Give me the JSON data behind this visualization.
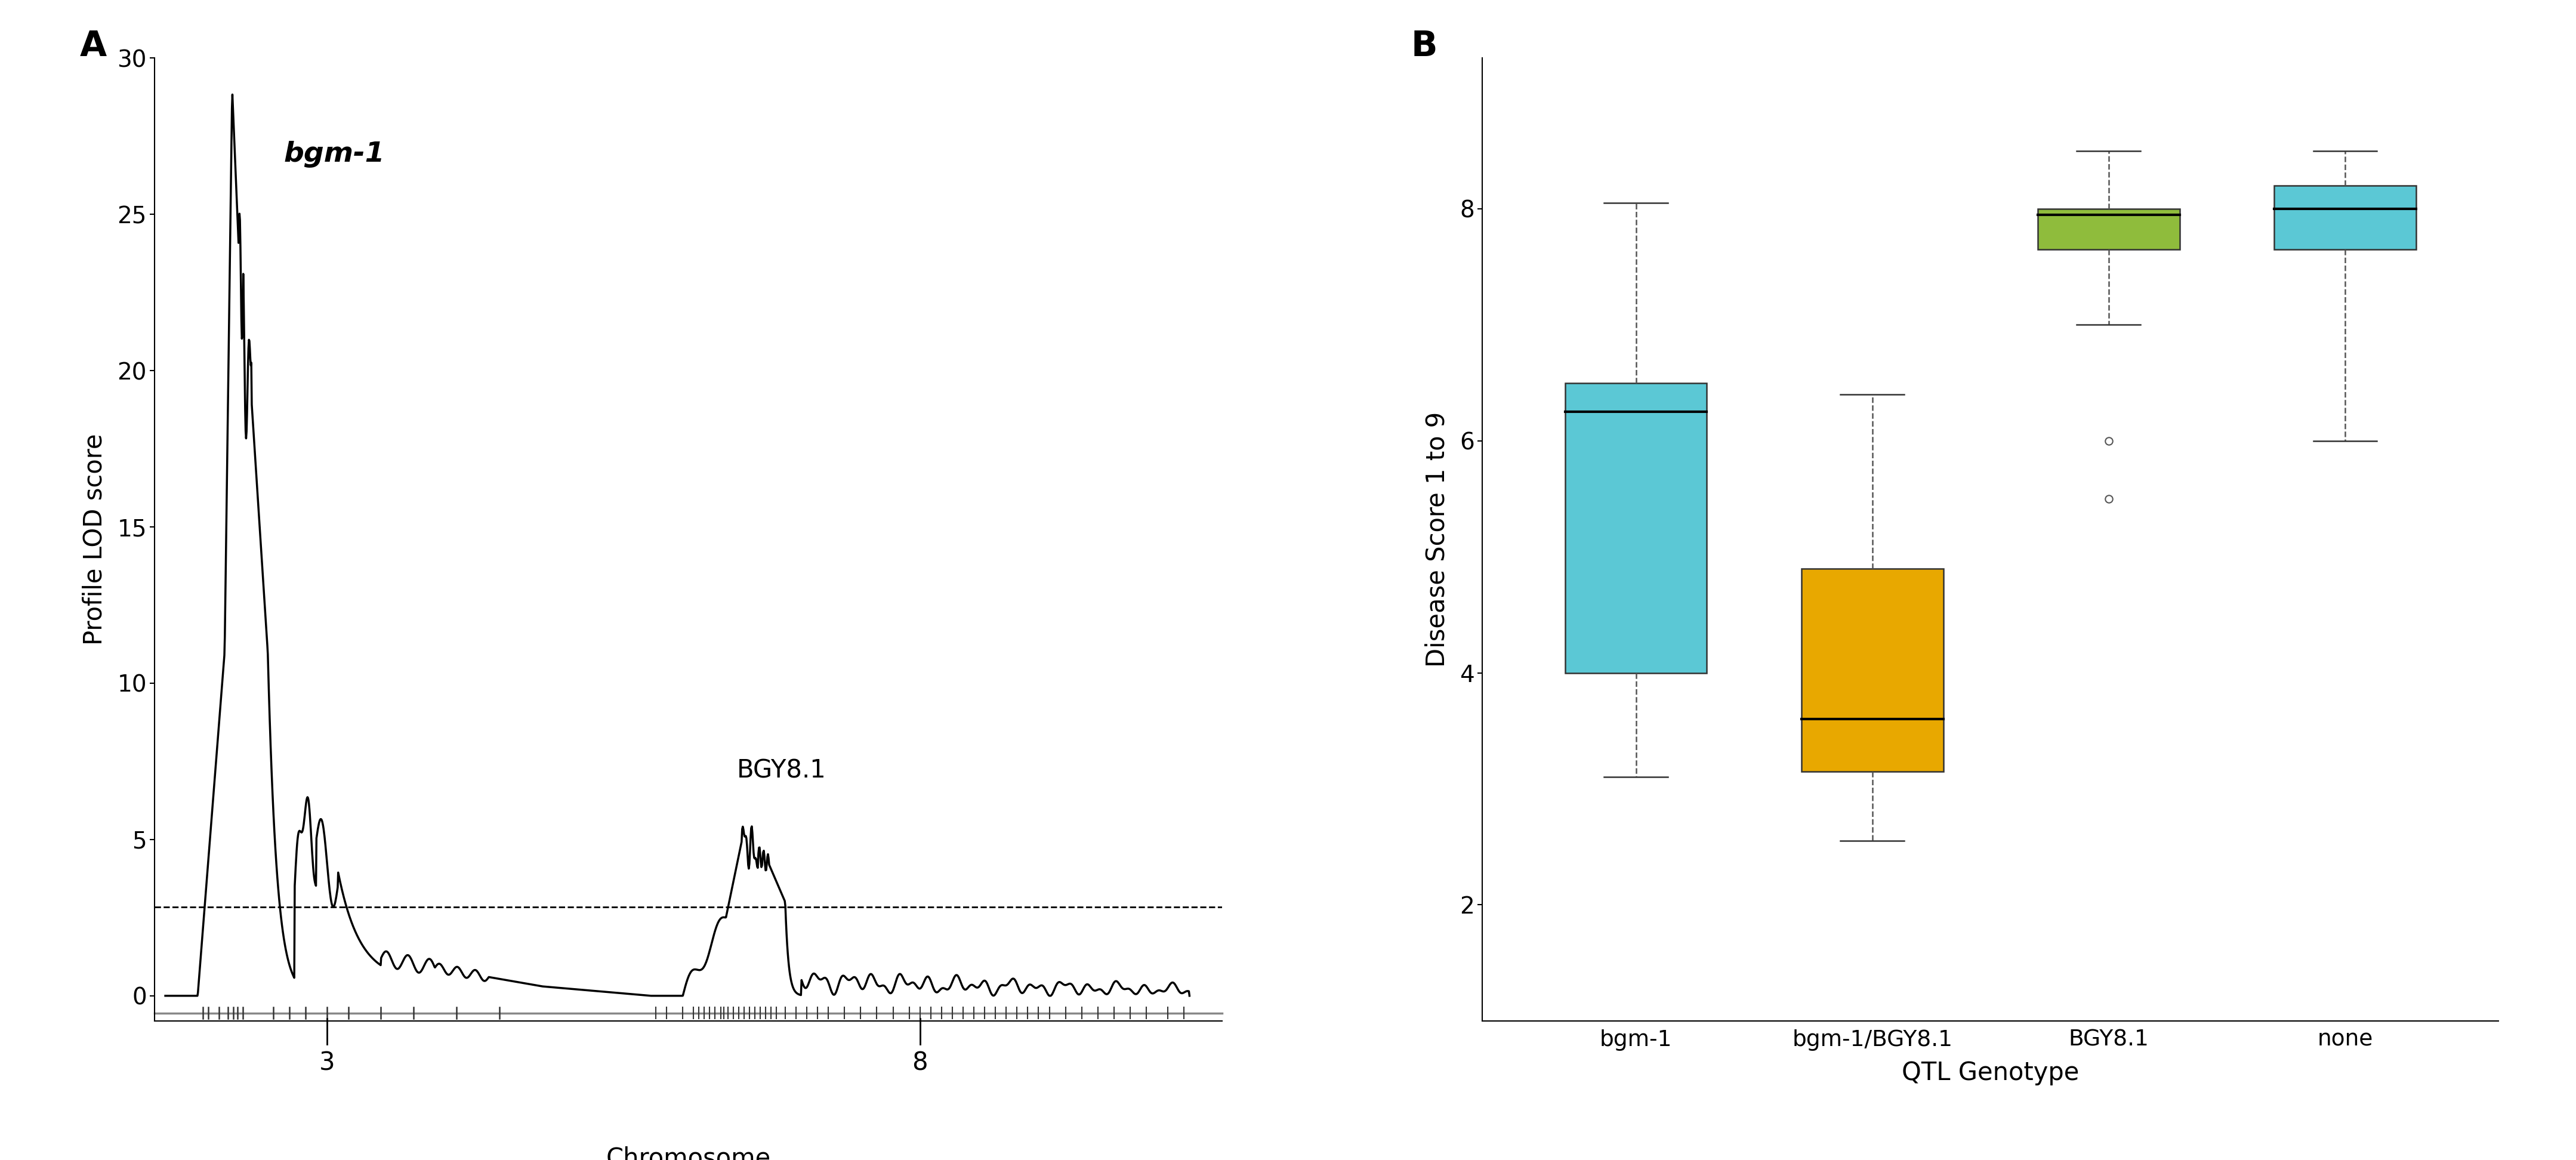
{
  "panel_A": {
    "title_label": "A",
    "xlabel": "Chromosome",
    "ylabel": "Profile LOD score",
    "ylim": [
      -0.8,
      30
    ],
    "yticks": [
      0,
      5,
      10,
      15,
      20,
      25,
      30
    ],
    "dashed_threshold": 2.85,
    "bgm1_label": "bgm-1",
    "bgy81_label": "BGY8.1",
    "background_color": "#ffffff",
    "line_color": "#000000"
  },
  "panel_B": {
    "title_label": "B",
    "xlabel": "QTL Genotype",
    "ylabel": "Disease Score 1 to 9",
    "categories": [
      "bgm-1",
      "bgm-1/BGY8.1",
      "BGY8.1",
      "none"
    ],
    "colors": [
      "#5bc8d5",
      "#e8a800",
      "#8fbc3c",
      "#5bc8d5"
    ],
    "ylim": [
      1.0,
      9.3
    ],
    "yticks": [
      2,
      4,
      6,
      8
    ],
    "boxes": [
      {
        "q1": 4.0,
        "median": 6.25,
        "q3": 6.5,
        "whislo": 3.1,
        "whishi": 8.05,
        "fliers": []
      },
      {
        "q1": 3.15,
        "median": 3.6,
        "q3": 4.9,
        "whislo": 2.55,
        "whishi": 6.4,
        "fliers": []
      },
      {
        "q1": 7.65,
        "median": 7.95,
        "q3": 8.0,
        "whislo": 7.0,
        "whishi": 8.5,
        "fliers": [
          6.0,
          5.5
        ]
      },
      {
        "q1": 7.65,
        "median": 8.0,
        "q3": 8.2,
        "whislo": 6.0,
        "whishi": 8.5,
        "fliers": []
      }
    ],
    "background_color": "#ffffff"
  }
}
